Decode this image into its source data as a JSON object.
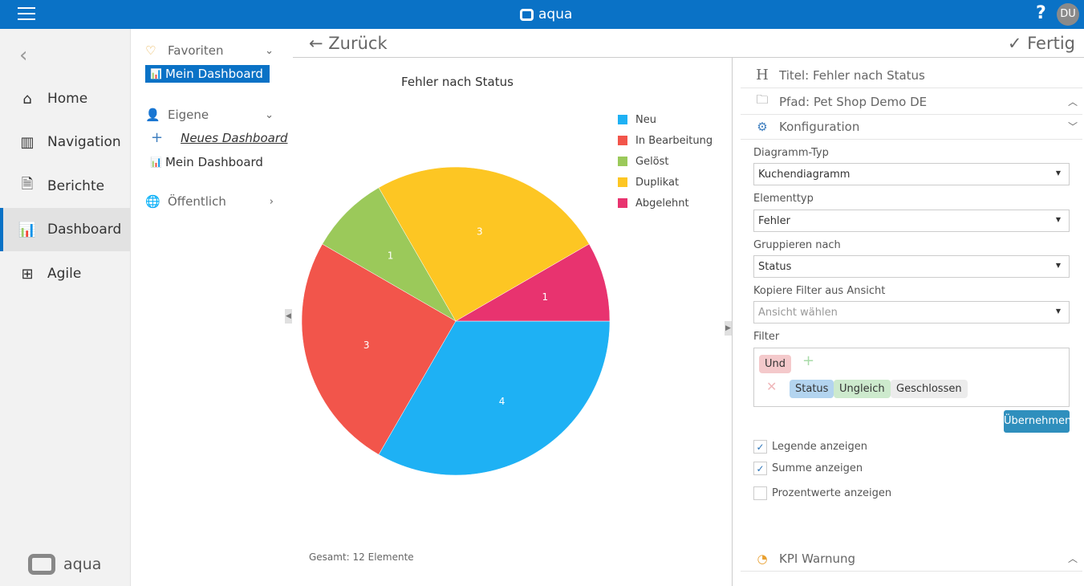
{
  "topbar": {
    "app_name": "aqua",
    "help": "?",
    "avatar": "DU"
  },
  "sidebar": {
    "items": [
      {
        "label": "Home",
        "icon": "home-icon"
      },
      {
        "label": "Navigation",
        "icon": "map-icon"
      },
      {
        "label": "Berichte",
        "icon": "report-icon"
      },
      {
        "label": "Dashboard",
        "icon": "dashboard-icon",
        "active": true
      },
      {
        "label": "Agile",
        "icon": "grid-icon"
      }
    ],
    "logo": "aqua"
  },
  "dashboards": {
    "favorites": {
      "label": "Favoriten",
      "items": [
        "Mein Dashboard"
      ]
    },
    "own": {
      "label": "Eigene",
      "new_label": "Neues Dashboard",
      "items": [
        "Mein Dashboard"
      ]
    },
    "public": {
      "label": "Öffentlich"
    }
  },
  "header": {
    "back": "← Zurück",
    "done": "Fertig"
  },
  "chart_data": {
    "type": "pie",
    "title": "Fehler nach Status",
    "categories": [
      "Neu",
      "In Bearbeitung",
      "Gelöst",
      "Duplikat",
      "Abgelehnt"
    ],
    "values": [
      4,
      3,
      1,
      3,
      1
    ],
    "colors": [
      "#1eb1f4",
      "#f2554b",
      "#9bc95a",
      "#fdc623",
      "#e8336f"
    ],
    "legend": "top-right",
    "total_label": "Gesamt: 12 Elemente"
  },
  "config": {
    "title_label": "Titel:",
    "title_value": "Fehler nach Status",
    "path_label": "Pfad: Pet Shop Demo DE",
    "config_label": "Konfiguration",
    "fields": [
      {
        "label": "Diagramm-Typ",
        "value": "Kuchendiagramm"
      },
      {
        "label": "Elementtyp",
        "value": "Fehler"
      },
      {
        "label": "Gruppieren nach",
        "value": "Status"
      },
      {
        "label": "Kopiere Filter aus Ansicht",
        "value": "Ansicht wählen"
      }
    ],
    "filter_label": "Filter",
    "filter": {
      "op": "Und",
      "field": "Status",
      "cmp": "Ungleich",
      "value": "Geschlossen"
    },
    "apply": "Übernehmen",
    "checks": [
      {
        "label": "Legende anzeigen",
        "checked": true
      },
      {
        "label": "Summe anzeigen",
        "checked": true
      },
      {
        "label": "Prozentwerte anzeigen",
        "checked": false
      }
    ],
    "kpi_label": "KPI Warnung"
  }
}
